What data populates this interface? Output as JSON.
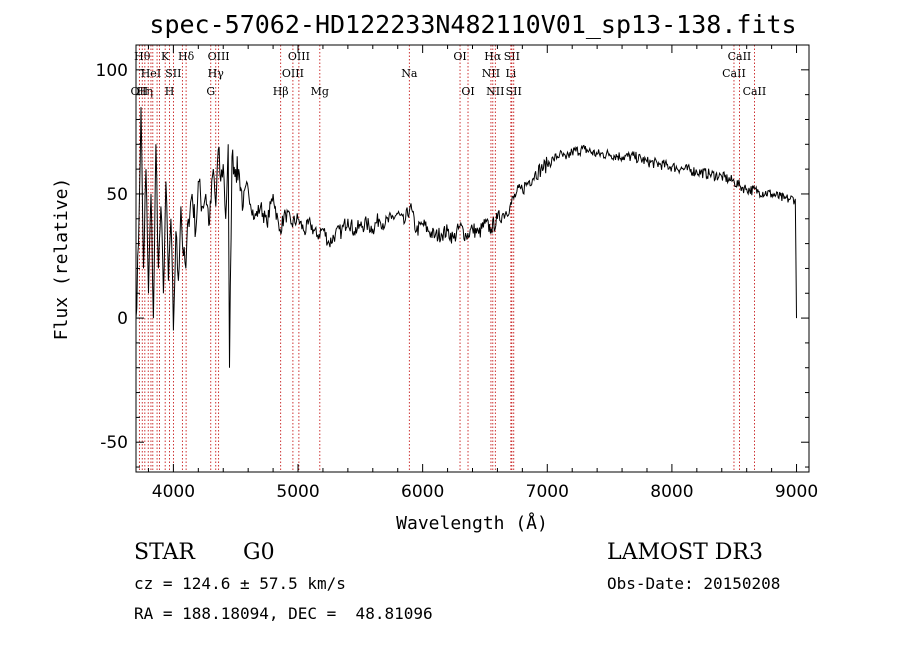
{
  "chart_data": {
    "type": "line",
    "title": "spec-57062-HD122233N482110V01_sp13-138.fits",
    "xlabel": "Wavelength (Å)",
    "ylabel": "Flux (relative)",
    "xlim": [
      3700,
      9100
    ],
    "ylim": [
      -62,
      110
    ],
    "x_ticks": [
      4000,
      5000,
      6000,
      7000,
      8000,
      9000
    ],
    "y_ticks": [
      -50,
      0,
      50,
      100
    ],
    "grid": false,
    "series": [
      {
        "x": [
          3700,
          3720,
          3740,
          3760,
          3780,
          3800,
          3820,
          3840,
          3860,
          3880,
          3900,
          3920,
          3940,
          3960,
          3980,
          4000,
          4020,
          4040,
          4060,
          4080,
          4100,
          4120,
          4150,
          4180,
          4200,
          4230,
          4260,
          4290,
          4320,
          4340,
          4360,
          4380,
          4400,
          4420,
          4440,
          4450,
          4470,
          4500,
          4530,
          4560,
          4600,
          4650,
          4700,
          4750,
          4800,
          4850,
          4900,
          4950,
          5000,
          5050,
          5100,
          5150,
          5200,
          5250,
          5300,
          5350,
          5400,
          5450,
          5500,
          5550,
          5600,
          5650,
          5700,
          5750,
          5800,
          5850,
          5900,
          5950,
          6000,
          6050,
          6100,
          6150,
          6200,
          6250,
          6300,
          6350,
          6400,
          6450,
          6500,
          6550,
          6600,
          6650,
          6700,
          6750,
          6800,
          6850,
          6900,
          6950,
          7000,
          7050,
          7100,
          7150,
          7200,
          7300,
          7400,
          7500,
          7600,
          7700,
          7800,
          7900,
          8000,
          8100,
          8200,
          8300,
          8400,
          8500,
          8550,
          8600,
          8700,
          8800,
          8900,
          8950,
          8990,
          9000
        ],
        "y": [
          0,
          30,
          85,
          20,
          60,
          10,
          50,
          0,
          70,
          20,
          45,
          10,
          55,
          15,
          40,
          -5,
          35,
          15,
          45,
          25,
          20,
          40,
          50,
          35,
          55,
          45,
          50,
          38,
          60,
          45,
          68,
          55,
          62,
          40,
          70,
          -20,
          65,
          60,
          58,
          45,
          52,
          40,
          45,
          38,
          50,
          35,
          42,
          38,
          40,
          35,
          38,
          33,
          36,
          30,
          34,
          35,
          40,
          35,
          37,
          38,
          36,
          40,
          38,
          40,
          42,
          38,
          45,
          35,
          38,
          35,
          33,
          34,
          35,
          32,
          37,
          33,
          36,
          34,
          38,
          36,
          40,
          42,
          45,
          50,
          52,
          55,
          58,
          60,
          62,
          64,
          66,
          64,
          67,
          68,
          66,
          66,
          65,
          65,
          63,
          62,
          61,
          60,
          59,
          58,
          57,
          55,
          53,
          52,
          51,
          50,
          48,
          48,
          48,
          0
        ]
      }
    ],
    "lines": [
      {
        "x": 3727,
        "label": "OII",
        "row": 2
      },
      {
        "x": 3750,
        "label": "Hθ",
        "row": 0
      },
      {
        "x": 3771,
        "label": "Hη",
        "row": 2
      },
      {
        "x": 3798,
        "label": "",
        "row": 0
      },
      {
        "x": 3820,
        "label": "HeI",
        "row": 1
      },
      {
        "x": 3835,
        "label": "",
        "row": 0
      },
      {
        "x": 3869,
        "label": "",
        "row": 0
      },
      {
        "x": 3889,
        "label": "",
        "row": 0
      },
      {
        "x": 3934,
        "label": "K",
        "row": 0
      },
      {
        "x": 3969,
        "label": "H",
        "row": 2
      },
      {
        "x": 4000,
        "label": "SII",
        "row": 1
      },
      {
        "x": 4072,
        "label": "",
        "row": 0
      },
      {
        "x": 4102,
        "label": "Hδ",
        "row": 0
      },
      {
        "x": 4300,
        "label": "G",
        "row": 2
      },
      {
        "x": 4340,
        "label": "Hγ",
        "row": 1
      },
      {
        "x": 4363,
        "label": "OIII",
        "row": 0
      },
      {
        "x": 4861,
        "label": "Hβ",
        "row": 2
      },
      {
        "x": 4959,
        "label": "OIII",
        "row": 1
      },
      {
        "x": 5007,
        "label": "OIII",
        "row": 0
      },
      {
        "x": 5175,
        "label": "Mg",
        "row": 2
      },
      {
        "x": 5893,
        "label": "Na",
        "row": 1
      },
      {
        "x": 6300,
        "label": "OI",
        "row": 0
      },
      {
        "x": 6364,
        "label": "OI",
        "row": 2
      },
      {
        "x": 6548,
        "label": "NII",
        "row": 1
      },
      {
        "x": 6563,
        "label": "Hα",
        "row": 0
      },
      {
        "x": 6583,
        "label": "NII",
        "row": 2
      },
      {
        "x": 6708,
        "label": "Li",
        "row": 1
      },
      {
        "x": 6716,
        "label": "SII",
        "row": 0
      },
      {
        "x": 6731,
        "label": "SII",
        "row": 2
      },
      {
        "x": 8498,
        "label": "CaII",
        "row": 1
      },
      {
        "x": 8542,
        "label": "CaII",
        "row": 0
      },
      {
        "x": 8662,
        "label": "CaII",
        "row": 2
      }
    ],
    "line_color": "#c00000",
    "spectrum_color": "#000000"
  },
  "info": {
    "class": "STAR",
    "subclass": "G0",
    "survey": "LAMOST DR3",
    "cz": "cz = 124.6 ± 57.5 km/s",
    "obs_date": "Obs-Date: 20150208",
    "radec": "RA = 188.18094, DEC =  48.81096"
  }
}
